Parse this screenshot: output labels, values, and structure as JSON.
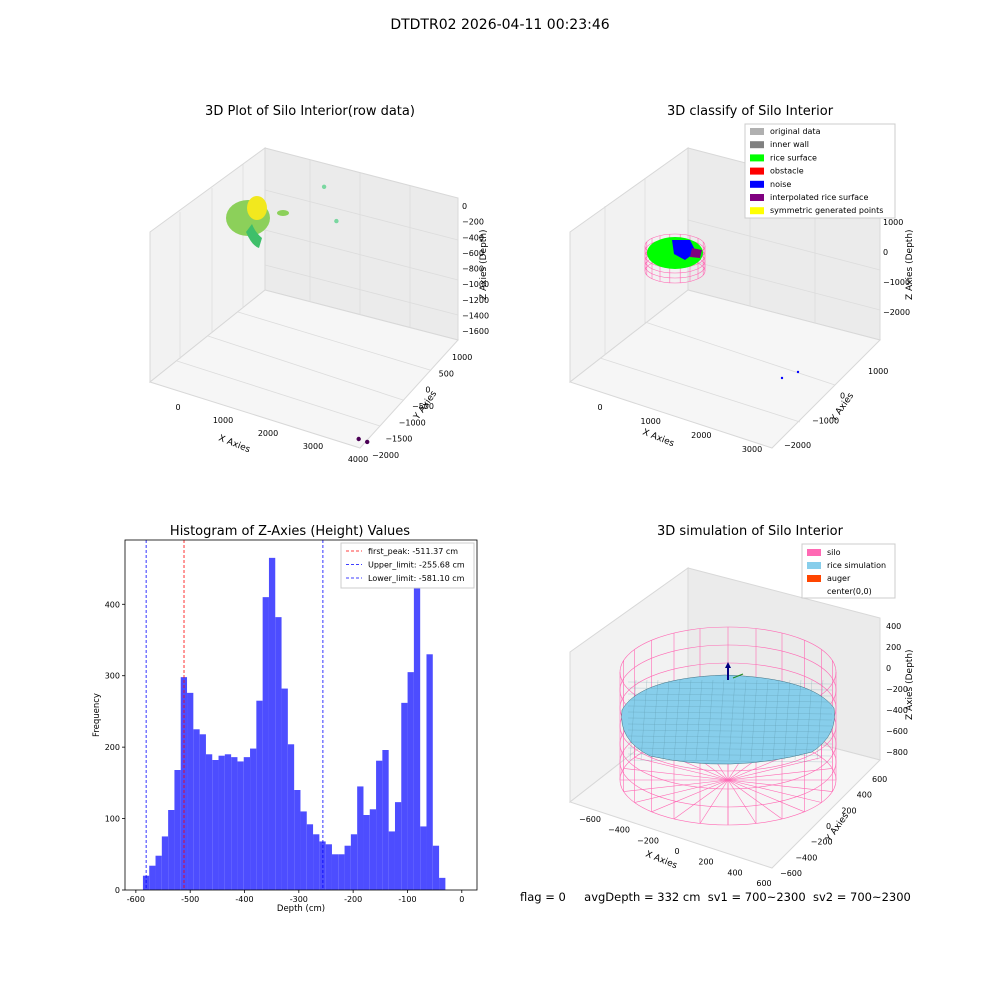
{
  "figure": {
    "title": "DTDTR02 2026-04-11 00:23:46",
    "status": {
      "flag": "flag = 0",
      "avg_depth": "avgDepth = 332 cm",
      "sv1": "sv1 = 700~2300",
      "sv2": "sv2 = 700~2300"
    }
  },
  "chart_data": [
    {
      "type": "scatter",
      "title": "3D Plot of Silo Interior(row data)",
      "xlabel": "X Axies",
      "ylabel": "Y Axies",
      "zlabel": "Z Axies (Depth)",
      "x_ticks": [
        "0",
        "1000",
        "2000",
        "3000",
        "4000"
      ],
      "y_ticks": [
        "−2000",
        "−1500",
        "−1000",
        "−500",
        "0",
        "500",
        "1000"
      ],
      "z_ticks": [
        "0",
        "−200",
        "−400",
        "−600",
        "−800",
        "−1000",
        "−1200",
        "−1400",
        "−1600"
      ],
      "outliers": [
        {
          "x": 3900,
          "y": -1900,
          "z": -1600,
          "color": "#4b0055"
        },
        {
          "x": 4000,
          "y": -1800,
          "z": -1650,
          "color": "#4b0055"
        },
        {
          "x": 1200,
          "y": 800,
          "z": -150,
          "color": "#7ad7a0"
        },
        {
          "x": 1600,
          "y": 600,
          "z": -400,
          "color": "#7ad7a0"
        }
      ],
      "colors": {
        "cluster_main": "#8cd05a",
        "cluster_hi": "#f2e81e",
        "cluster_lo": "#3fbf6a"
      }
    },
    {
      "type": "scatter",
      "title": "3D classify of Silo Interior",
      "xlabel": "X Axies",
      "ylabel": "Y Axies",
      "zlabel": "Z Axies (Depth)",
      "x_ticks": [
        "0",
        "1000",
        "2000",
        "3000"
      ],
      "y_ticks": [
        "−2000",
        "−1000",
        "0",
        "1000"
      ],
      "z_ticks": [
        "1000",
        "0",
        "−1000",
        "−2000"
      ],
      "legend": [
        {
          "label": "original data",
          "color": "#b0b0b0"
        },
        {
          "label": "inner wall",
          "color": "#808080"
        },
        {
          "label": "rice surface",
          "color": "#00ff00"
        },
        {
          "label": "obstacle",
          "color": "#ff0000"
        },
        {
          "label": "noise",
          "color": "#0000ff"
        },
        {
          "label": "interpolated rice surface",
          "color": "#800080"
        },
        {
          "label": "symmetric generated points",
          "color": "#ffff00"
        }
      ],
      "legend_loc": "upper right",
      "colors": {
        "wall": "#ff69b4"
      }
    },
    {
      "type": "bar",
      "title": "Histogram of Z-Axies (Height) Values",
      "xlabel": "Depth (cm)",
      "ylabel": "Frequency",
      "xlim": [
        -620,
        28
      ],
      "ylim": [
        0,
        490
      ],
      "x_ticks": [
        -600,
        -500,
        -400,
        -300,
        -200,
        -100,
        0
      ],
      "y_ticks": [
        0,
        100,
        200,
        300,
        400
      ],
      "bin_start": -587,
      "bin_width": 11.6,
      "values": [
        20,
        34,
        48,
        75,
        112,
        168,
        298,
        276,
        225,
        218,
        190,
        182,
        188,
        190,
        186,
        180,
        186,
        198,
        265,
        410,
        465,
        382,
        282,
        204,
        140,
        110,
        92,
        78,
        68,
        64,
        50,
        50,
        62,
        78,
        145,
        105,
        113,
        181,
        196,
        82,
        123,
        262,
        305,
        426,
        89,
        330,
        62,
        17
      ],
      "bar_color": "#4d4dff",
      "vlines": [
        {
          "label": "first_peak: -511.37 cm",
          "x": -511.37,
          "color": "#ff0000"
        },
        {
          "label": "Upper_limit: -255.68 cm",
          "x": -255.68,
          "color": "#0000ff"
        },
        {
          "label": "Lower_limit: -581.10 cm",
          "x": -581.1,
          "color": "#0000ff"
        }
      ],
      "legend_loc": "upper right"
    },
    {
      "type": "surface",
      "title": "3D simulation of Silo Interior",
      "xlabel": "X Axies",
      "ylabel": "Y Axies",
      "zlabel": "Z Axies (Depth)",
      "x_ticks": [
        "−600",
        "−400",
        "−200",
        "0",
        "200",
        "400",
        "600"
      ],
      "y_ticks": [
        "−600",
        "−400",
        "−200",
        "0",
        "200",
        "400",
        "600"
      ],
      "z_ticks": [
        "400",
        "200",
        "0",
        "−200",
        "−400",
        "−600",
        "−800"
      ],
      "legend": [
        {
          "label": "silo",
          "color": "#ff69b4"
        },
        {
          "label": "rice simulation",
          "color": "#87ceeb"
        },
        {
          "label": "auger",
          "color": "#ff4500"
        },
        {
          "label": "center(0,0)",
          "color": "#ffffff"
        }
      ],
      "legend_loc": "upper right"
    }
  ]
}
